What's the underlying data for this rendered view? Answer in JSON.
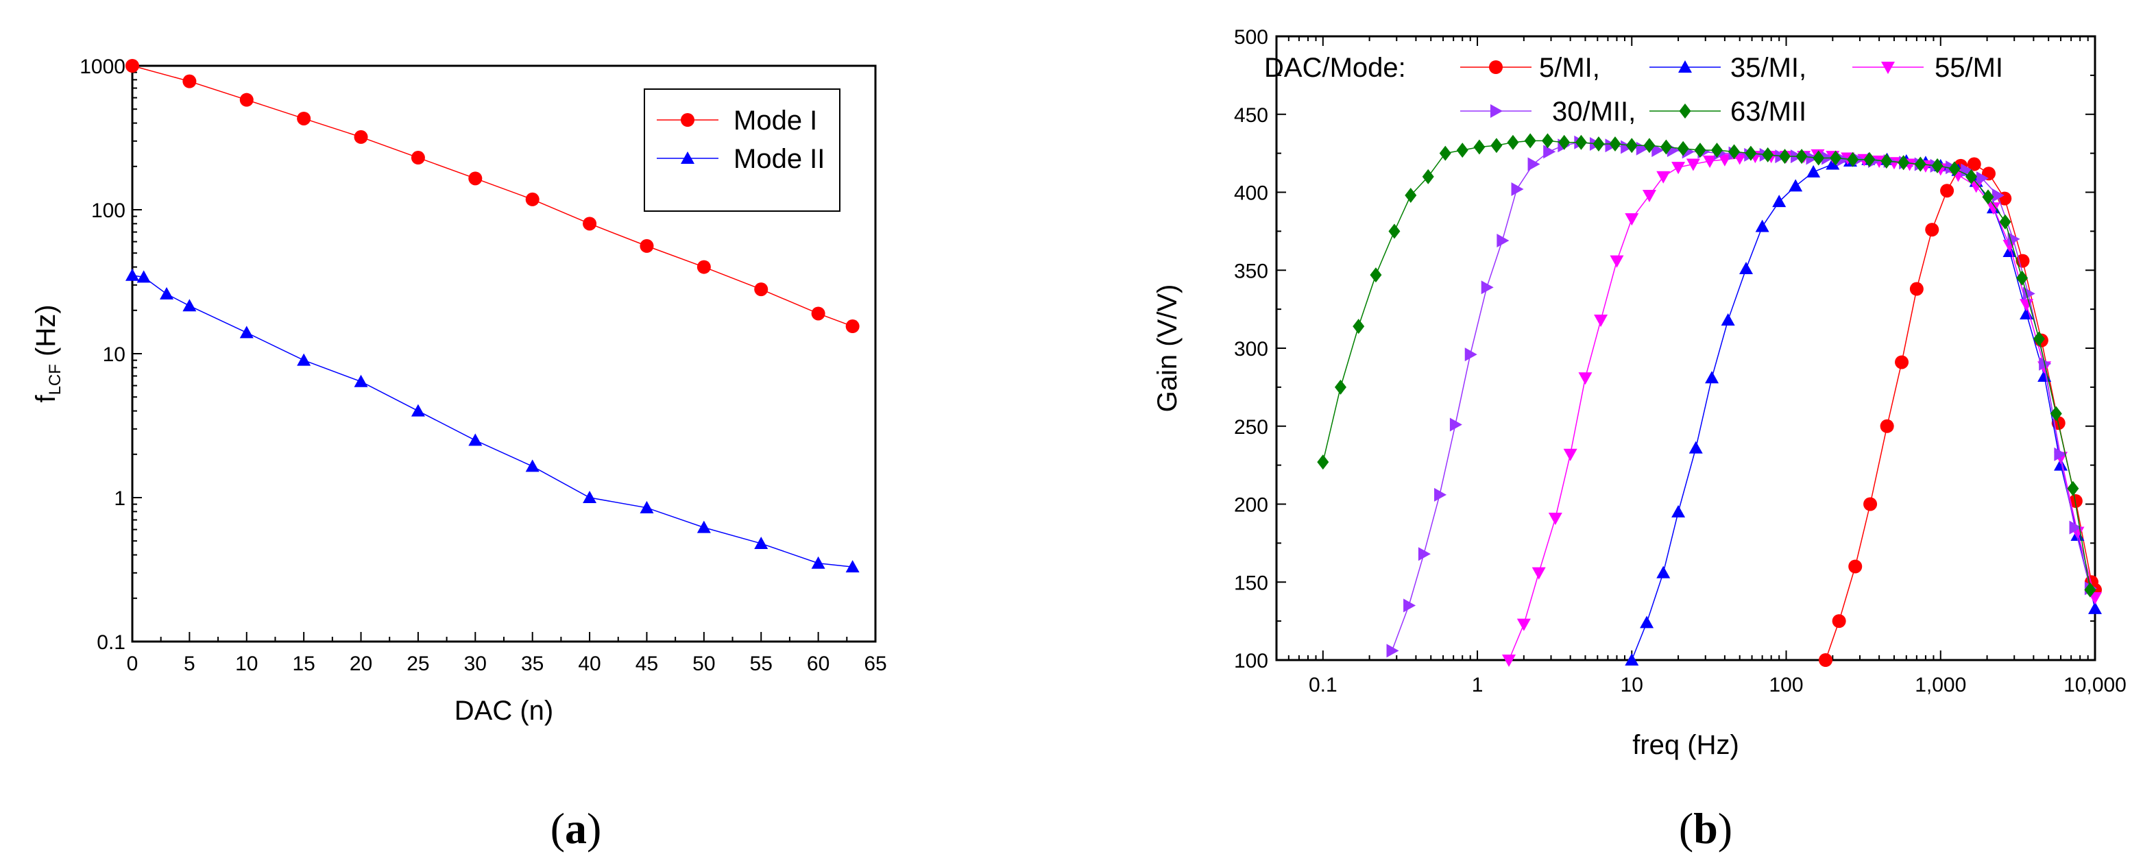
{
  "panels": {
    "a": {
      "caption_open": "(",
      "caption_letter": "a",
      "caption_close": ")"
    },
    "b": {
      "caption_open": "(",
      "caption_letter": "b",
      "caption_close": ")"
    }
  },
  "chart_data": [
    {
      "id": "a",
      "type": "line",
      "yscale": "log",
      "xlabel": "DAC (n)",
      "ylabel_main": "f",
      "ylabel_sub": "LCF",
      "ylabel_unit": " (Hz)",
      "xlim": [
        0,
        65
      ],
      "ylim": [
        0.1,
        1000
      ],
      "xticks": [
        0,
        5,
        10,
        15,
        20,
        25,
        30,
        35,
        40,
        45,
        50,
        55,
        60,
        65
      ],
      "yticks": [
        0.1,
        1,
        10,
        100,
        1000
      ],
      "ytick_labels": [
        "0.1",
        "1",
        "10",
        "100",
        "1000"
      ],
      "series": [
        {
          "name": "Mode I",
          "color": "#ff0000",
          "marker": "circle",
          "x": [
            0,
            5,
            10,
            15,
            20,
            25,
            30,
            35,
            40,
            45,
            50,
            55,
            60,
            63
          ],
          "y": [
            1000,
            780,
            580,
            430,
            320,
            230,
            165,
            118,
            80,
            56,
            40,
            28,
            19,
            15.5
          ]
        },
        {
          "name": "Mode II",
          "color": "#0000ff",
          "marker": "triangle-up",
          "x": [
            0,
            1,
            3,
            5,
            10,
            15,
            20,
            25,
            30,
            35,
            40,
            45,
            50,
            55,
            60,
            63
          ],
          "y": [
            35,
            34,
            26,
            21.5,
            14,
            9,
            6.4,
            4,
            2.5,
            1.65,
            1,
            0.85,
            0.62,
            0.48,
            0.35,
            0.33
          ]
        }
      ]
    },
    {
      "id": "b",
      "type": "line",
      "xscale": "log",
      "xlabel": "freq (Hz)",
      "ylabel": "Gain (V/V)",
      "xlim": [
        0.05,
        10000
      ],
      "ylim": [
        100,
        500
      ],
      "xticks": [
        0.1,
        1,
        10,
        100,
        1000,
        10000
      ],
      "xtick_labels": [
        "0.1",
        "1",
        "10",
        "100",
        "1,000",
        "10,000"
      ],
      "yticks": [
        100,
        150,
        200,
        250,
        300,
        350,
        400,
        450,
        500
      ],
      "legend_title": "DAC/Mode:",
      "series": [
        {
          "name": "5/MI,",
          "color": "#ff0000",
          "marker": "circle",
          "x": [
            180,
            220,
            280,
            350,
            450,
            560,
            700,
            880,
            1100,
            1350,
            1650,
            2050,
            2600,
            3400,
            4500,
            5800,
            7500,
            9500,
            10000
          ],
          "y": [
            100,
            125,
            160,
            200,
            250,
            291,
            338,
            376,
            401,
            417,
            418,
            412,
            396,
            356,
            305,
            252,
            202,
            150,
            145
          ]
        },
        {
          "name": "35/MI,",
          "color": "#0000ff",
          "marker": "triangle-up",
          "x": [
            10,
            12.5,
            16,
            20,
            26,
            33,
            42,
            55,
            70,
            90,
            115,
            150,
            200,
            260,
            340,
            450,
            600,
            800,
            1000,
            1300,
            1700,
            2200,
            2800,
            3600,
            4700,
            6000,
            7700,
            10000
          ],
          "y": [
            100,
            124,
            156,
            195,
            236,
            281,
            318,
            351,
            378,
            394,
            404,
            413,
            418,
            420,
            421,
            421,
            420,
            419,
            417,
            414,
            407,
            390,
            362,
            322,
            282,
            225,
            180,
            133
          ]
        },
        {
          "name": "55/MI",
          "color": "#ff00ff",
          "marker": "triangle-down",
          "x": [
            1.6,
            2,
            2.5,
            3.2,
            4,
            5,
            6.3,
            8,
            10,
            13,
            16,
            20,
            25,
            32,
            40,
            50,
            63,
            80,
            100,
            130,
            160,
            200,
            250,
            320,
            400,
            500,
            630,
            800,
            1000,
            1300,
            1700,
            2200,
            2800,
            3600,
            4700,
            6000,
            7700,
            10000
          ],
          "y": [
            100,
            123,
            156,
            191,
            232,
            281,
            318,
            356,
            383,
            398,
            410,
            416,
            418,
            420,
            421,
            422,
            423,
            423,
            423,
            423,
            424,
            423,
            422,
            421,
            420,
            419,
            418,
            417,
            415,
            411,
            404,
            390,
            366,
            328,
            288,
            230,
            182,
            140
          ]
        },
        {
          "name": "30/MII,",
          "color": "#9933ff",
          "marker": "triangle-right",
          "x": [
            0.28,
            0.36,
            0.45,
            0.57,
            0.72,
            0.9,
            1.15,
            1.45,
            1.8,
            2.3,
            2.9,
            3.6,
            4.6,
            5.8,
            7.3,
            9.2,
            11.6,
            14.6,
            18.4,
            23,
            29,
            37,
            46,
            58,
            73,
            92,
            116,
            146,
            184,
            232,
            292,
            368,
            464,
            584,
            736,
            930,
            1170,
            1470,
            1850,
            2340,
            2950,
            3700,
            4700,
            5900,
            7400,
            9300
          ],
          "y": [
            106,
            135,
            168,
            206,
            251,
            296,
            339,
            369,
            402,
            418,
            426,
            430,
            432,
            431,
            430,
            429,
            428,
            427,
            427,
            426,
            426,
            425,
            425,
            424,
            424,
            423,
            423,
            422,
            422,
            421,
            421,
            420,
            420,
            419,
            418,
            417,
            416,
            414,
            409,
            398,
            370,
            335,
            290,
            232,
            185,
            146
          ]
        },
        {
          "name": "63/MII",
          "color": "#008000",
          "marker": "diamond",
          "x": [
            0.1,
            0.13,
            0.17,
            0.22,
            0.29,
            0.37,
            0.48,
            0.62,
            0.8,
            1.03,
            1.33,
            1.7,
            2.2,
            2.85,
            3.65,
            4.7,
            6.1,
            7.8,
            10,
            13,
            16.7,
            21.5,
            27.7,
            35.6,
            46,
            59,
            76,
            98,
            126,
            162,
            209,
            270,
            346,
            446,
            575,
            740,
            953,
            1230,
            1580,
            2030,
            2620,
            3370,
            4340,
            5600,
            7200,
            9300
          ],
          "y": [
            227,
            275,
            314,
            347,
            375,
            398,
            410,
            425,
            427,
            429,
            430,
            432,
            433,
            433,
            432,
            432,
            431,
            431,
            430,
            430,
            429,
            428,
            427,
            427,
            426,
            425,
            424,
            423,
            423,
            422,
            422,
            421,
            421,
            420,
            419,
            418,
            417,
            415,
            410,
            397,
            381,
            345,
            306,
            258,
            210,
            145
          ]
        }
      ]
    }
  ]
}
